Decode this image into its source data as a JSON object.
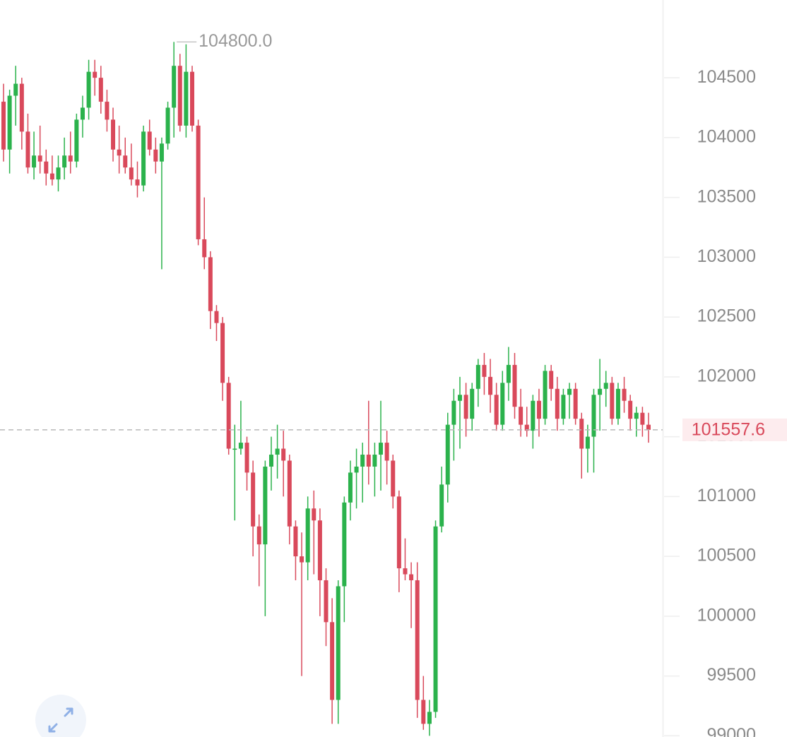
{
  "chart_data": {
    "type": "candlestick",
    "up_color": "#2bb24c",
    "down_color": "#d9495b",
    "ylim": [
      98990,
      105150
    ],
    "yticks": [
      99000,
      99500,
      100000,
      100500,
      101000,
      101500,
      102000,
      102500,
      103000,
      103500,
      104000,
      104500
    ],
    "last_price": 101557.6,
    "max_price": {
      "value": 104800,
      "label": "104800.0"
    },
    "ohlc": [
      [
        104300,
        104450,
        103800,
        103900
      ],
      [
        103900,
        104400,
        103700,
        104350
      ],
      [
        104350,
        104600,
        104100,
        104450
      ],
      [
        104450,
        104500,
        103900,
        104050
      ],
      [
        104050,
        104200,
        103700,
        103750
      ],
      [
        103750,
        104050,
        103650,
        103850
      ],
      [
        103850,
        104100,
        103700,
        103800
      ],
      [
        103800,
        103900,
        103600,
        103700
      ],
      [
        103700,
        103850,
        103600,
        103650
      ],
      [
        103650,
        103850,
        103550,
        103750
      ],
      [
        103750,
        104000,
        103650,
        103850
      ],
      [
        103850,
        104050,
        103700,
        103800
      ],
      [
        103800,
        104200,
        103750,
        104150
      ],
      [
        104150,
        104350,
        104000,
        104250
      ],
      [
        104250,
        104650,
        104150,
        104550
      ],
      [
        104550,
        104650,
        104350,
        104500
      ],
      [
        104500,
        104600,
        104200,
        104300
      ],
      [
        104300,
        104400,
        104050,
        104150
      ],
      [
        104150,
        104250,
        103800,
        103900
      ],
      [
        103900,
        104100,
        103700,
        103850
      ],
      [
        103850,
        104000,
        103700,
        103750
      ],
      [
        103750,
        103950,
        103600,
        103650
      ],
      [
        103650,
        103800,
        103500,
        103600
      ],
      [
        103600,
        104100,
        103550,
        104050
      ],
      [
        104050,
        104150,
        103850,
        103900
      ],
      [
        103900,
        104000,
        103700,
        103800
      ],
      [
        103800,
        104000,
        102900,
        103950
      ],
      [
        103950,
        104300,
        103900,
        104250
      ],
      [
        104250,
        104800,
        104000,
        104600
      ],
      [
        104600,
        104700,
        104050,
        104100
      ],
      [
        104100,
        104780,
        104000,
        104550
      ],
      [
        104550,
        104600,
        104050,
        104100
      ],
      [
        104100,
        104150,
        103100,
        103150
      ],
      [
        103150,
        103500,
        102900,
        103000
      ],
      [
        103000,
        103050,
        102400,
        102550
      ],
      [
        102550,
        102600,
        102300,
        102450
      ],
      [
        102450,
        102500,
        101800,
        101950
      ],
      [
        101950,
        102000,
        101350,
        101400
      ],
      [
        101400,
        101600,
        100800,
        101400
      ],
      [
        101400,
        101800,
        101350,
        101450
      ],
      [
        101450,
        101500,
        101050,
        101200
      ],
      [
        101200,
        101300,
        100500,
        100750
      ],
      [
        100750,
        100850,
        100250,
        100600
      ],
      [
        100600,
        101300,
        100000,
        101250
      ],
      [
        101250,
        101500,
        101050,
        101350
      ],
      [
        101350,
        101600,
        101150,
        101400
      ],
      [
        101400,
        101550,
        101000,
        101300
      ],
      [
        101300,
        101350,
        100600,
        100750
      ],
      [
        100750,
        100800,
        100300,
        100500
      ],
      [
        100500,
        100700,
        99500,
        100450
      ],
      [
        100450,
        101000,
        100300,
        100900
      ],
      [
        100900,
        101050,
        100350,
        100800
      ],
      [
        100800,
        100900,
        100000,
        100300
      ],
      [
        100300,
        100400,
        99750,
        99950
      ],
      [
        99950,
        100150,
        99100,
        99300
      ],
      [
        99300,
        100300,
        99100,
        100250
      ],
      [
        100250,
        101000,
        99950,
        100950
      ],
      [
        100950,
        101300,
        100800,
        101200
      ],
      [
        101200,
        101400,
        100900,
        101250
      ],
      [
        101250,
        101450,
        100950,
        101350
      ],
      [
        101350,
        101800,
        101100,
        101250
      ],
      [
        101250,
        101450,
        101000,
        101350
      ],
      [
        101350,
        101800,
        101050,
        101450
      ],
      [
        101450,
        101550,
        101100,
        101300
      ],
      [
        101300,
        101350,
        100900,
        101000
      ],
      [
        101000,
        101050,
        100200,
        100400
      ],
      [
        100400,
        100650,
        100300,
        100350
      ],
      [
        100350,
        100450,
        99900,
        100300
      ],
      [
        100300,
        100450,
        99150,
        99300
      ],
      [
        99300,
        99500,
        99050,
        99100
      ],
      [
        99100,
        99300,
        99000,
        99200
      ],
      [
        99200,
        100800,
        99150,
        100750
      ],
      [
        100750,
        101250,
        100700,
        101100
      ],
      [
        101100,
        101700,
        100950,
        101600
      ],
      [
        101600,
        101900,
        101300,
        101800
      ],
      [
        101800,
        102000,
        101400,
        101850
      ],
      [
        101850,
        101950,
        101500,
        101650
      ],
      [
        101650,
        101950,
        101550,
        101900
      ],
      [
        101900,
        102150,
        101750,
        102100
      ],
      [
        102100,
        102200,
        101850,
        102000
      ],
      [
        102000,
        102150,
        101700,
        101850
      ],
      [
        101850,
        101950,
        101550,
        101600
      ],
      [
        101600,
        102050,
        101550,
        101950
      ],
      [
        101950,
        102250,
        101800,
        102100
      ],
      [
        102100,
        102200,
        101650,
        101750
      ],
      [
        101750,
        101900,
        101500,
        101600
      ],
      [
        101600,
        101750,
        101500,
        101550
      ],
      [
        101550,
        101850,
        101400,
        101800
      ],
      [
        101800,
        101900,
        101500,
        101650
      ],
      [
        101650,
        102100,
        101600,
        102050
      ],
      [
        102050,
        102100,
        101800,
        101900
      ],
      [
        101900,
        102000,
        101550,
        101650
      ],
      [
        101650,
        101900,
        101600,
        101850
      ],
      [
        101850,
        101950,
        101650,
        101900
      ],
      [
        101900,
        101950,
        101600,
        101650
      ],
      [
        101650,
        101700,
        101150,
        101400
      ],
      [
        101400,
        101600,
        101200,
        101500
      ],
      [
        101500,
        101900,
        101200,
        101850
      ],
      [
        101850,
        102150,
        101550,
        101900
      ],
      [
        101900,
        102050,
        101750,
        101950
      ],
      [
        101950,
        102000,
        101600,
        101650
      ],
      [
        101650,
        101950,
        101600,
        101900
      ],
      [
        101900,
        102000,
        101700,
        101800
      ],
      [
        101800,
        101850,
        101550,
        101650
      ],
      [
        101650,
        101750,
        101500,
        101700
      ],
      [
        101700,
        101750,
        101500,
        101600
      ],
      [
        101600,
        101700,
        101450,
        101557.6
      ]
    ]
  }
}
